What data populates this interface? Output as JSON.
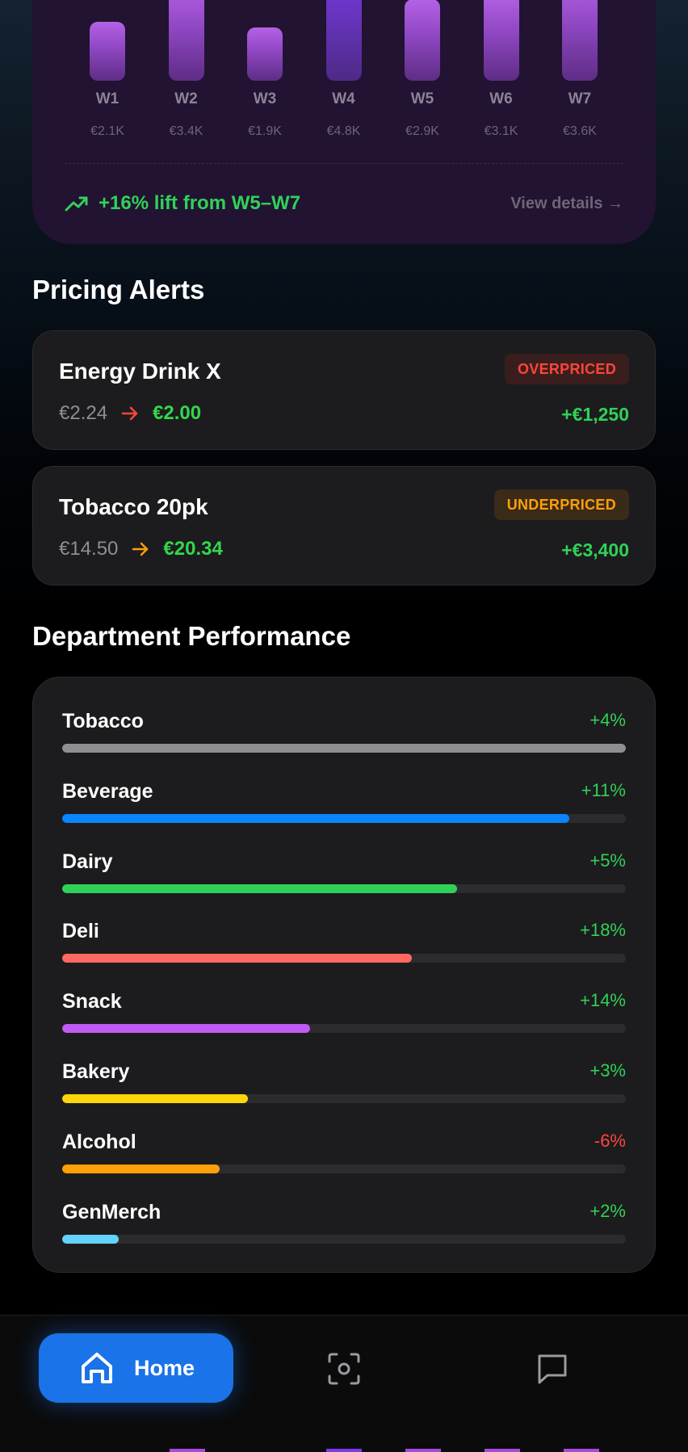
{
  "weekly_chart": {
    "chart_data": {
      "type": "bar",
      "categories": [
        "W1",
        "W2",
        "W3",
        "W4",
        "W5",
        "W6",
        "W7"
      ],
      "values": [
        2.1,
        3.4,
        1.9,
        4.8,
        2.9,
        3.1,
        3.6
      ],
      "value_labels": [
        "€2.1K",
        "€3.4K",
        "€1.9K",
        "€4.8K",
        "€2.9K",
        "€3.1K",
        "€3.6K"
      ],
      "unit": "€K",
      "highlight": "W4"
    },
    "trend_text": "+16% lift from W5–W7",
    "view_details_label": "View details →"
  },
  "pricing_alerts": {
    "title": "Pricing Alerts",
    "items": [
      {
        "name": "Energy Drink X",
        "badge": "OVERPRICED",
        "current_price": "€2.24",
        "suggested_price": "€2.00",
        "impact": "+€1,250",
        "accent": "#ff453a"
      },
      {
        "name": "Tobacco 20pk",
        "badge": "UNDERPRICED",
        "current_price": "€14.50",
        "suggested_price": "€20.34",
        "impact": "+€3,400",
        "accent": "#ff9f0a"
      }
    ]
  },
  "department_performance": {
    "title": "Department Performance",
    "items": [
      {
        "name": "Tobacco",
        "change": "+4%",
        "level": 1.0,
        "color": "#8e8e93"
      },
      {
        "name": "Beverage",
        "change": "+11%",
        "level": 0.9,
        "color": "#0a84ff"
      },
      {
        "name": "Dairy",
        "change": "+5%",
        "level": 0.7,
        "color": "#30d158"
      },
      {
        "name": "Deli",
        "change": "+18%",
        "level": 0.62,
        "color": "#ff6961"
      },
      {
        "name": "Snack",
        "change": "+14%",
        "level": 0.44,
        "color": "#bf5af2"
      },
      {
        "name": "Bakery",
        "change": "+3%",
        "level": 0.33,
        "color": "#ffd60a"
      },
      {
        "name": "Alcohol",
        "change": "-6%",
        "level": 0.28,
        "color": "#ff9f0a",
        "negative": true
      },
      {
        "name": "GenMerch",
        "change": "+2%",
        "level": 0.1,
        "color": "#64d2ff"
      }
    ]
  },
  "tab_bar": {
    "home_label": "Home",
    "icons": [
      "home-icon",
      "scan-icon",
      "chat-icon"
    ]
  }
}
